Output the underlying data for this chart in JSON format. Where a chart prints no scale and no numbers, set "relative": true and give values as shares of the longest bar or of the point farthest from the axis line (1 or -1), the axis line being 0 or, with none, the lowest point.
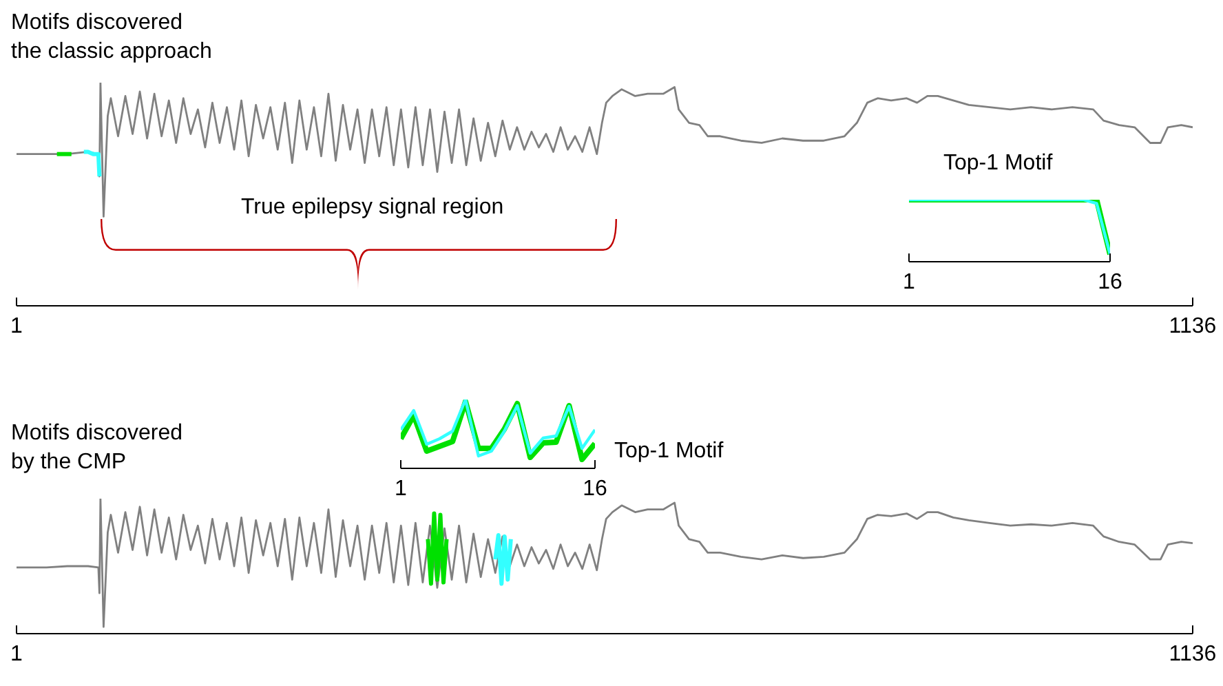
{
  "chart_data": [
    {
      "type": "line",
      "title": "Motifs discovered\nthe classic approach",
      "annotations": [
        "True epilepsy signal region"
      ],
      "relative": true,
      "xlim": [
        1,
        1136
      ],
      "xticks": [
        1,
        1136
      ],
      "series": [
        {
          "color": "#808080",
          "x": [
            1,
            30,
            50,
            70,
            80,
            81,
            82,
            85,
            89,
            92,
            99,
            106,
            113,
            120,
            127,
            134,
            141,
            148,
            155,
            162,
            169,
            176,
            183,
            190,
            197,
            204,
            211,
            218,
            225,
            232,
            239,
            246,
            253,
            260,
            267,
            274,
            281,
            288,
            295,
            302,
            309,
            316,
            323,
            330,
            337,
            344,
            351,
            358,
            365,
            372,
            379,
            386,
            393,
            400,
            407,
            414,
            421,
            428,
            435,
            442,
            449,
            456,
            463,
            470,
            477,
            484,
            491,
            498,
            505,
            512,
            519,
            526,
            533,
            540,
            547,
            554,
            561,
            566,
            570,
            576,
            585,
            598,
            610,
            625,
            636,
            640,
            650,
            660,
            668,
            680,
            700,
            720,
            740,
            760,
            780,
            800,
            812,
            822,
            832,
            845,
            860,
            870,
            880,
            890,
            905,
            920,
            940,
            960,
            980,
            1000,
            1020,
            1040,
            1050,
            1065,
            1080,
            1095,
            1105,
            1112,
            1125,
            1136
          ],
          "values": [
            0.68,
            0.68,
            0.68,
            0.69,
            0.68,
            0.58,
            1,
            0.4,
            0.85,
            0.93,
            0.76,
            0.94,
            0.77,
            0.96,
            0.75,
            0.95,
            0.76,
            0.92,
            0.73,
            0.93,
            0.77,
            0.88,
            0.71,
            0.91,
            0.73,
            0.89,
            0.7,
            0.92,
            0.67,
            0.9,
            0.75,
            0.89,
            0.7,
            0.91,
            0.64,
            0.92,
            0.7,
            0.89,
            0.67,
            0.95,
            0.65,
            0.9,
            0.7,
            0.88,
            0.64,
            0.88,
            0.67,
            0.89,
            0.63,
            0.88,
            0.62,
            0.89,
            0.63,
            0.88,
            0.6,
            0.87,
            0.64,
            0.88,
            0.63,
            0.84,
            0.65,
            0.82,
            0.67,
            0.83,
            0.7,
            0.8,
            0.7,
            0.78,
            0.71,
            0.77,
            0.69,
            0.8,
            0.7,
            0.76,
            0.69,
            0.8,
            0.68,
            0.82,
            0.91,
            0.94,
            0.97,
            0.94,
            0.95,
            0.95,
            0.98,
            0.88,
            0.82,
            0.81,
            0.76,
            0.76,
            0.74,
            0.73,
            0.75,
            0.74,
            0.74,
            0.76,
            0.82,
            0.91,
            0.93,
            0.92,
            0.93,
            0.91,
            0.94,
            0.94,
            0.92,
            0.9,
            0.89,
            0.88,
            0.89,
            0.88,
            0.89,
            0.88,
            0.83,
            0.81,
            0.8,
            0.73,
            0.73,
            0.8,
            0.81,
            0.8
          ]
        },
        {
          "color": "#00e000",
          "x": [
            40,
            47,
            54
          ],
          "values": [
            0.68,
            0.68,
            0.68
          ]
        },
        {
          "color": "#33ffff",
          "x": [
            66,
            70,
            75,
            80,
            81
          ],
          "values": [
            0.69,
            0.69,
            0.68,
            0.68,
            0.58
          ]
        }
      ]
    },
    {
      "type": "line",
      "title": "Top-1 Motif",
      "relative": true,
      "xlim": [
        1,
        16
      ],
      "xticks": [
        1,
        16
      ],
      "series": [
        {
          "color": "#00e000",
          "x": [
            1,
            2,
            3,
            4,
            5,
            6,
            7,
            8,
            9,
            10,
            11,
            12,
            13,
            14,
            15,
            16
          ],
          "values": [
            1,
            1,
            1,
            1,
            1,
            1,
            1,
            1,
            1,
            1,
            1,
            1,
            1,
            1,
            1,
            0.12
          ]
        },
        {
          "color": "#33ffff",
          "x": [
            1,
            2,
            3,
            4,
            5,
            6,
            7,
            8,
            9,
            10,
            11,
            12,
            13,
            14,
            15,
            16
          ],
          "values": [
            1,
            1,
            1,
            1,
            1,
            1,
            1,
            1,
            1,
            1,
            1,
            1,
            1,
            1,
            0.94,
            0.12
          ]
        }
      ]
    },
    {
      "type": "line",
      "title": "Motifs discovered\nby the CMP",
      "relative": true,
      "xlim": [
        1,
        1136
      ],
      "xticks": [
        1,
        1136
      ],
      "series": [
        {
          "color": "#808080",
          "x": [
            1,
            30,
            50,
            70,
            80,
            81,
            82,
            85,
            89,
            92,
            99,
            106,
            113,
            120,
            127,
            134,
            141,
            148,
            155,
            162,
            169,
            176,
            183,
            190,
            197,
            204,
            211,
            218,
            225,
            232,
            239,
            246,
            253,
            260,
            267,
            274,
            281,
            288,
            295,
            302,
            309,
            316,
            323,
            330,
            337,
            344,
            351,
            358,
            365,
            372,
            379,
            386,
            393,
            400,
            407,
            414,
            421,
            428,
            435,
            442,
            449,
            456,
            463,
            470,
            477,
            484,
            491,
            498,
            505,
            512,
            519,
            526,
            533,
            540,
            547,
            554,
            561,
            566,
            570,
            576,
            585,
            598,
            610,
            625,
            636,
            640,
            650,
            660,
            668,
            680,
            700,
            720,
            740,
            760,
            780,
            800,
            812,
            822,
            832,
            845,
            860,
            870,
            880,
            890,
            905,
            920,
            940,
            960,
            980,
            1000,
            1020,
            1040,
            1050,
            1065,
            1080,
            1095,
            1105,
            1112,
            1125,
            1136
          ],
          "values": [
            0.49,
            0.49,
            0.5,
            0.5,
            0.49,
            0.3,
            1,
            0.05,
            0.75,
            0.88,
            0.6,
            0.9,
            0.62,
            0.94,
            0.58,
            0.92,
            0.6,
            0.86,
            0.55,
            0.88,
            0.62,
            0.8,
            0.52,
            0.85,
            0.55,
            0.82,
            0.5,
            0.86,
            0.45,
            0.84,
            0.58,
            0.82,
            0.5,
            0.85,
            0.4,
            0.86,
            0.5,
            0.82,
            0.45,
            0.92,
            0.42,
            0.84,
            0.5,
            0.8,
            0.4,
            0.8,
            0.45,
            0.82,
            0.38,
            0.8,
            0.36,
            0.82,
            0.38,
            0.8,
            0.34,
            0.78,
            0.4,
            0.8,
            0.38,
            0.74,
            0.42,
            0.7,
            0.45,
            0.72,
            0.5,
            0.66,
            0.5,
            0.64,
            0.52,
            0.62,
            0.48,
            0.66,
            0.5,
            0.6,
            0.48,
            0.66,
            0.47,
            0.7,
            0.85,
            0.9,
            0.95,
            0.9,
            0.92,
            0.92,
            0.97,
            0.8,
            0.7,
            0.68,
            0.6,
            0.6,
            0.57,
            0.55,
            0.58,
            0.56,
            0.57,
            0.6,
            0.7,
            0.85,
            0.88,
            0.87,
            0.89,
            0.85,
            0.9,
            0.9,
            0.86,
            0.84,
            0.82,
            0.8,
            0.81,
            0.8,
            0.82,
            0.8,
            0.72,
            0.68,
            0.66,
            0.55,
            0.55,
            0.66,
            0.68,
            0.67
          ]
        },
        {
          "color": "#00e000",
          "x": [
            398,
            401,
            404,
            407,
            410,
            413,
            416
          ],
          "values": [
            0.7,
            0.37,
            0.89,
            0.4,
            0.88,
            0.38,
            0.7
          ]
        },
        {
          "color": "#33ffff",
          "x": [
            463,
            466,
            469,
            472,
            475,
            478
          ],
          "values": [
            0.55,
            0.73,
            0.37,
            0.72,
            0.4,
            0.7
          ]
        }
      ]
    },
    {
      "type": "line",
      "title": "Top-1 Motif",
      "relative": true,
      "xlim": [
        1,
        16
      ],
      "xticks": [
        1,
        16
      ],
      "series": [
        {
          "color": "#00e000",
          "x": [
            1,
            2,
            3,
            4,
            5,
            6,
            7,
            8,
            9,
            10,
            11,
            12,
            13,
            14,
            15,
            16
          ],
          "values": [
            0.43,
            0.77,
            0.25,
            0.32,
            0.39,
            0.97,
            0.29,
            0.29,
            0.57,
            0.94,
            0.16,
            0.37,
            0.38,
            0.91,
            0.13,
            0.36
          ]
        },
        {
          "color": "#33ffff",
          "x": [
            1,
            2,
            3,
            4,
            5,
            6,
            7,
            8,
            9,
            10,
            11,
            12,
            13,
            14,
            15,
            16
          ],
          "values": [
            0.56,
            0.84,
            0.35,
            0.43,
            0.54,
            1,
            0.18,
            0.25,
            0.54,
            0.91,
            0.22,
            0.44,
            0.47,
            0.9,
            0.29,
            0.56
          ]
        }
      ]
    }
  ]
}
